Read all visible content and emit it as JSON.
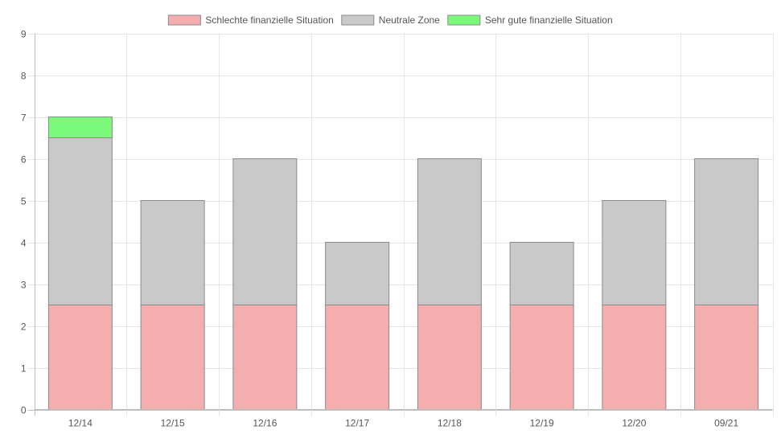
{
  "chart_data": {
    "type": "bar",
    "stacked": true,
    "categories": [
      "12/14",
      "12/15",
      "12/16",
      "12/17",
      "12/18",
      "12/19",
      "12/20",
      "09/21"
    ],
    "series": [
      {
        "name": "Schlechte finanzielle Situation",
        "values": [
          2.5,
          2.5,
          2.5,
          2.5,
          2.5,
          2.5,
          2.5,
          2.5
        ],
        "color": "#f4aeae"
      },
      {
        "name": "Neutrale Zone",
        "values": [
          4,
          2.5,
          3.5,
          1.5,
          3.5,
          1.5,
          2.5,
          3.5
        ],
        "color": "#c9c9c9"
      },
      {
        "name": "Sehr gute finanzielle Situation",
        "values": [
          0.5,
          0,
          0,
          0,
          0,
          0,
          0,
          0
        ],
        "color": "#7bfa79"
      }
    ],
    "ylim": [
      0,
      9
    ],
    "yticks": [
      "0",
      "1",
      "2",
      "3",
      "4",
      "5",
      "6",
      "7",
      "8",
      "9"
    ],
    "grid": true,
    "legend_position": "top",
    "title": "",
    "xlabel": "",
    "ylabel": "",
    "bar_border_color": "#8a8a8a",
    "grid_color": "#e6e6e6",
    "axis_color": "#bdbdbd"
  }
}
